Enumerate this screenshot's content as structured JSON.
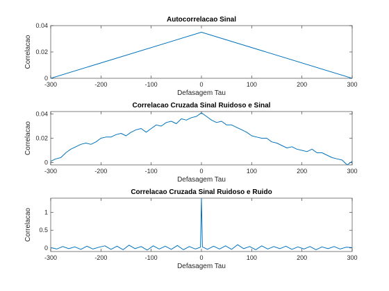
{
  "chart_data": [
    {
      "type": "line",
      "title": "Autocorrelacao Sinal",
      "xlabel": "Defasagem Tau",
      "ylabel": "Correlacao",
      "xlim": [
        -300,
        300
      ],
      "ylim": [
        0,
        0.04
      ],
      "xticks": [
        -300,
        -200,
        -100,
        0,
        100,
        200,
        300
      ],
      "xtick_labels": [
        "-300",
        "-200",
        "-100",
        "0",
        "100",
        "200",
        "300"
      ],
      "yticks": [
        0,
        0.02,
        0.04
      ],
      "ytick_labels": [
        "0",
        "0.02",
        "0.04"
      ],
      "grid": false,
      "color": "#0072BD",
      "x": [
        -300,
        0,
        300
      ],
      "y": [
        0,
        0.035,
        0
      ]
    },
    {
      "type": "line",
      "title": "Correlacao Cruzada Sinal Ruidoso e Sinal",
      "xlabel": "Defasagem Tau",
      "ylabel": "Correlacao",
      "xlim": [
        -300,
        300
      ],
      "ylim": [
        -0.002,
        0.042
      ],
      "xticks": [
        -300,
        -200,
        -100,
        0,
        100,
        200,
        300
      ],
      "xtick_labels": [
        "-300",
        "-200",
        "-100",
        "0",
        "100",
        "200",
        "300"
      ],
      "yticks": [
        0,
        0.02,
        0.04
      ],
      "ytick_labels": [
        "0",
        "0.02",
        "0.04"
      ],
      "grid": false,
      "color": "#0072BD",
      "x": [
        -300,
        -290,
        -280,
        -270,
        -260,
        -250,
        -240,
        -230,
        -220,
        -210,
        -200,
        -190,
        -180,
        -170,
        -160,
        -150,
        -140,
        -130,
        -120,
        -110,
        -100,
        -90,
        -80,
        -70,
        -60,
        -50,
        -40,
        -30,
        -20,
        -10,
        0,
        10,
        20,
        30,
        40,
        50,
        60,
        70,
        80,
        90,
        100,
        110,
        120,
        130,
        140,
        150,
        160,
        170,
        180,
        190,
        200,
        210,
        220,
        230,
        240,
        250,
        260,
        270,
        280,
        290,
        300
      ],
      "y": [
        0.001,
        0.003,
        0.004,
        0.008,
        0.011,
        0.013,
        0.015,
        0.016,
        0.015,
        0.017,
        0.02,
        0.021,
        0.021,
        0.023,
        0.024,
        0.022,
        0.025,
        0.027,
        0.028,
        0.025,
        0.028,
        0.031,
        0.03,
        0.033,
        0.034,
        0.032,
        0.036,
        0.035,
        0.037,
        0.038,
        0.041,
        0.038,
        0.035,
        0.033,
        0.034,
        0.031,
        0.031,
        0.029,
        0.027,
        0.025,
        0.022,
        0.021,
        0.02,
        0.02,
        0.017,
        0.016,
        0.014,
        0.012,
        0.013,
        0.011,
        0.01,
        0.009,
        0.011,
        0.008,
        0.008,
        0.006,
        0.004,
        0.003,
        0.002,
        -0.002,
        0.001
      ]
    },
    {
      "type": "line",
      "title": "Correlacao Cruzada Sinal Ruidoso e Ruido",
      "xlabel": "Defasagem Tau",
      "ylabel": "Correlacao",
      "xlim": [
        -300,
        300
      ],
      "ylim": [
        -0.1,
        1.4
      ],
      "xticks": [
        -300,
        -200,
        -100,
        0,
        100,
        200,
        300
      ],
      "xtick_labels": [
        "-300",
        "-200",
        "-100",
        "0",
        "100",
        "200",
        "300"
      ],
      "yticks": [
        0,
        0.5,
        1
      ],
      "ytick_labels": [
        "0",
        "0.5",
        "1"
      ],
      "grid": false,
      "color": "#0072BD",
      "x": [
        -300,
        -288,
        -276,
        -264,
        -252,
        -240,
        -228,
        -216,
        -204,
        -192,
        -180,
        -168,
        -156,
        -144,
        -132,
        -120,
        -108,
        -96,
        -84,
        -72,
        -60,
        -48,
        -36,
        -24,
        -12,
        -2,
        0,
        2,
        12,
        24,
        36,
        48,
        60,
        72,
        84,
        96,
        108,
        120,
        132,
        144,
        156,
        168,
        180,
        192,
        204,
        216,
        228,
        240,
        252,
        264,
        276,
        288,
        300
      ],
      "y": [
        0.01,
        -0.03,
        0.04,
        -0.02,
        0.03,
        -0.04,
        0.05,
        -0.03,
        0.02,
        0.06,
        -0.04,
        0.05,
        -0.05,
        0.08,
        -0.02,
        0.04,
        -0.06,
        0.06,
        -0.03,
        0.05,
        -0.04,
        0.07,
        -0.05,
        0.04,
        -0.03,
        0.02,
        1.4,
        0.03,
        -0.04,
        0.05,
        -0.03,
        0.06,
        -0.04,
        0.09,
        -0.02,
        0.04,
        -0.05,
        0.06,
        -0.03,
        0.04,
        -0.02,
        0.05,
        -0.04,
        0.03,
        -0.03,
        0.04,
        -0.05,
        0.03,
        -0.02,
        0.04,
        -0.03,
        0.02,
        0.01
      ]
    }
  ]
}
